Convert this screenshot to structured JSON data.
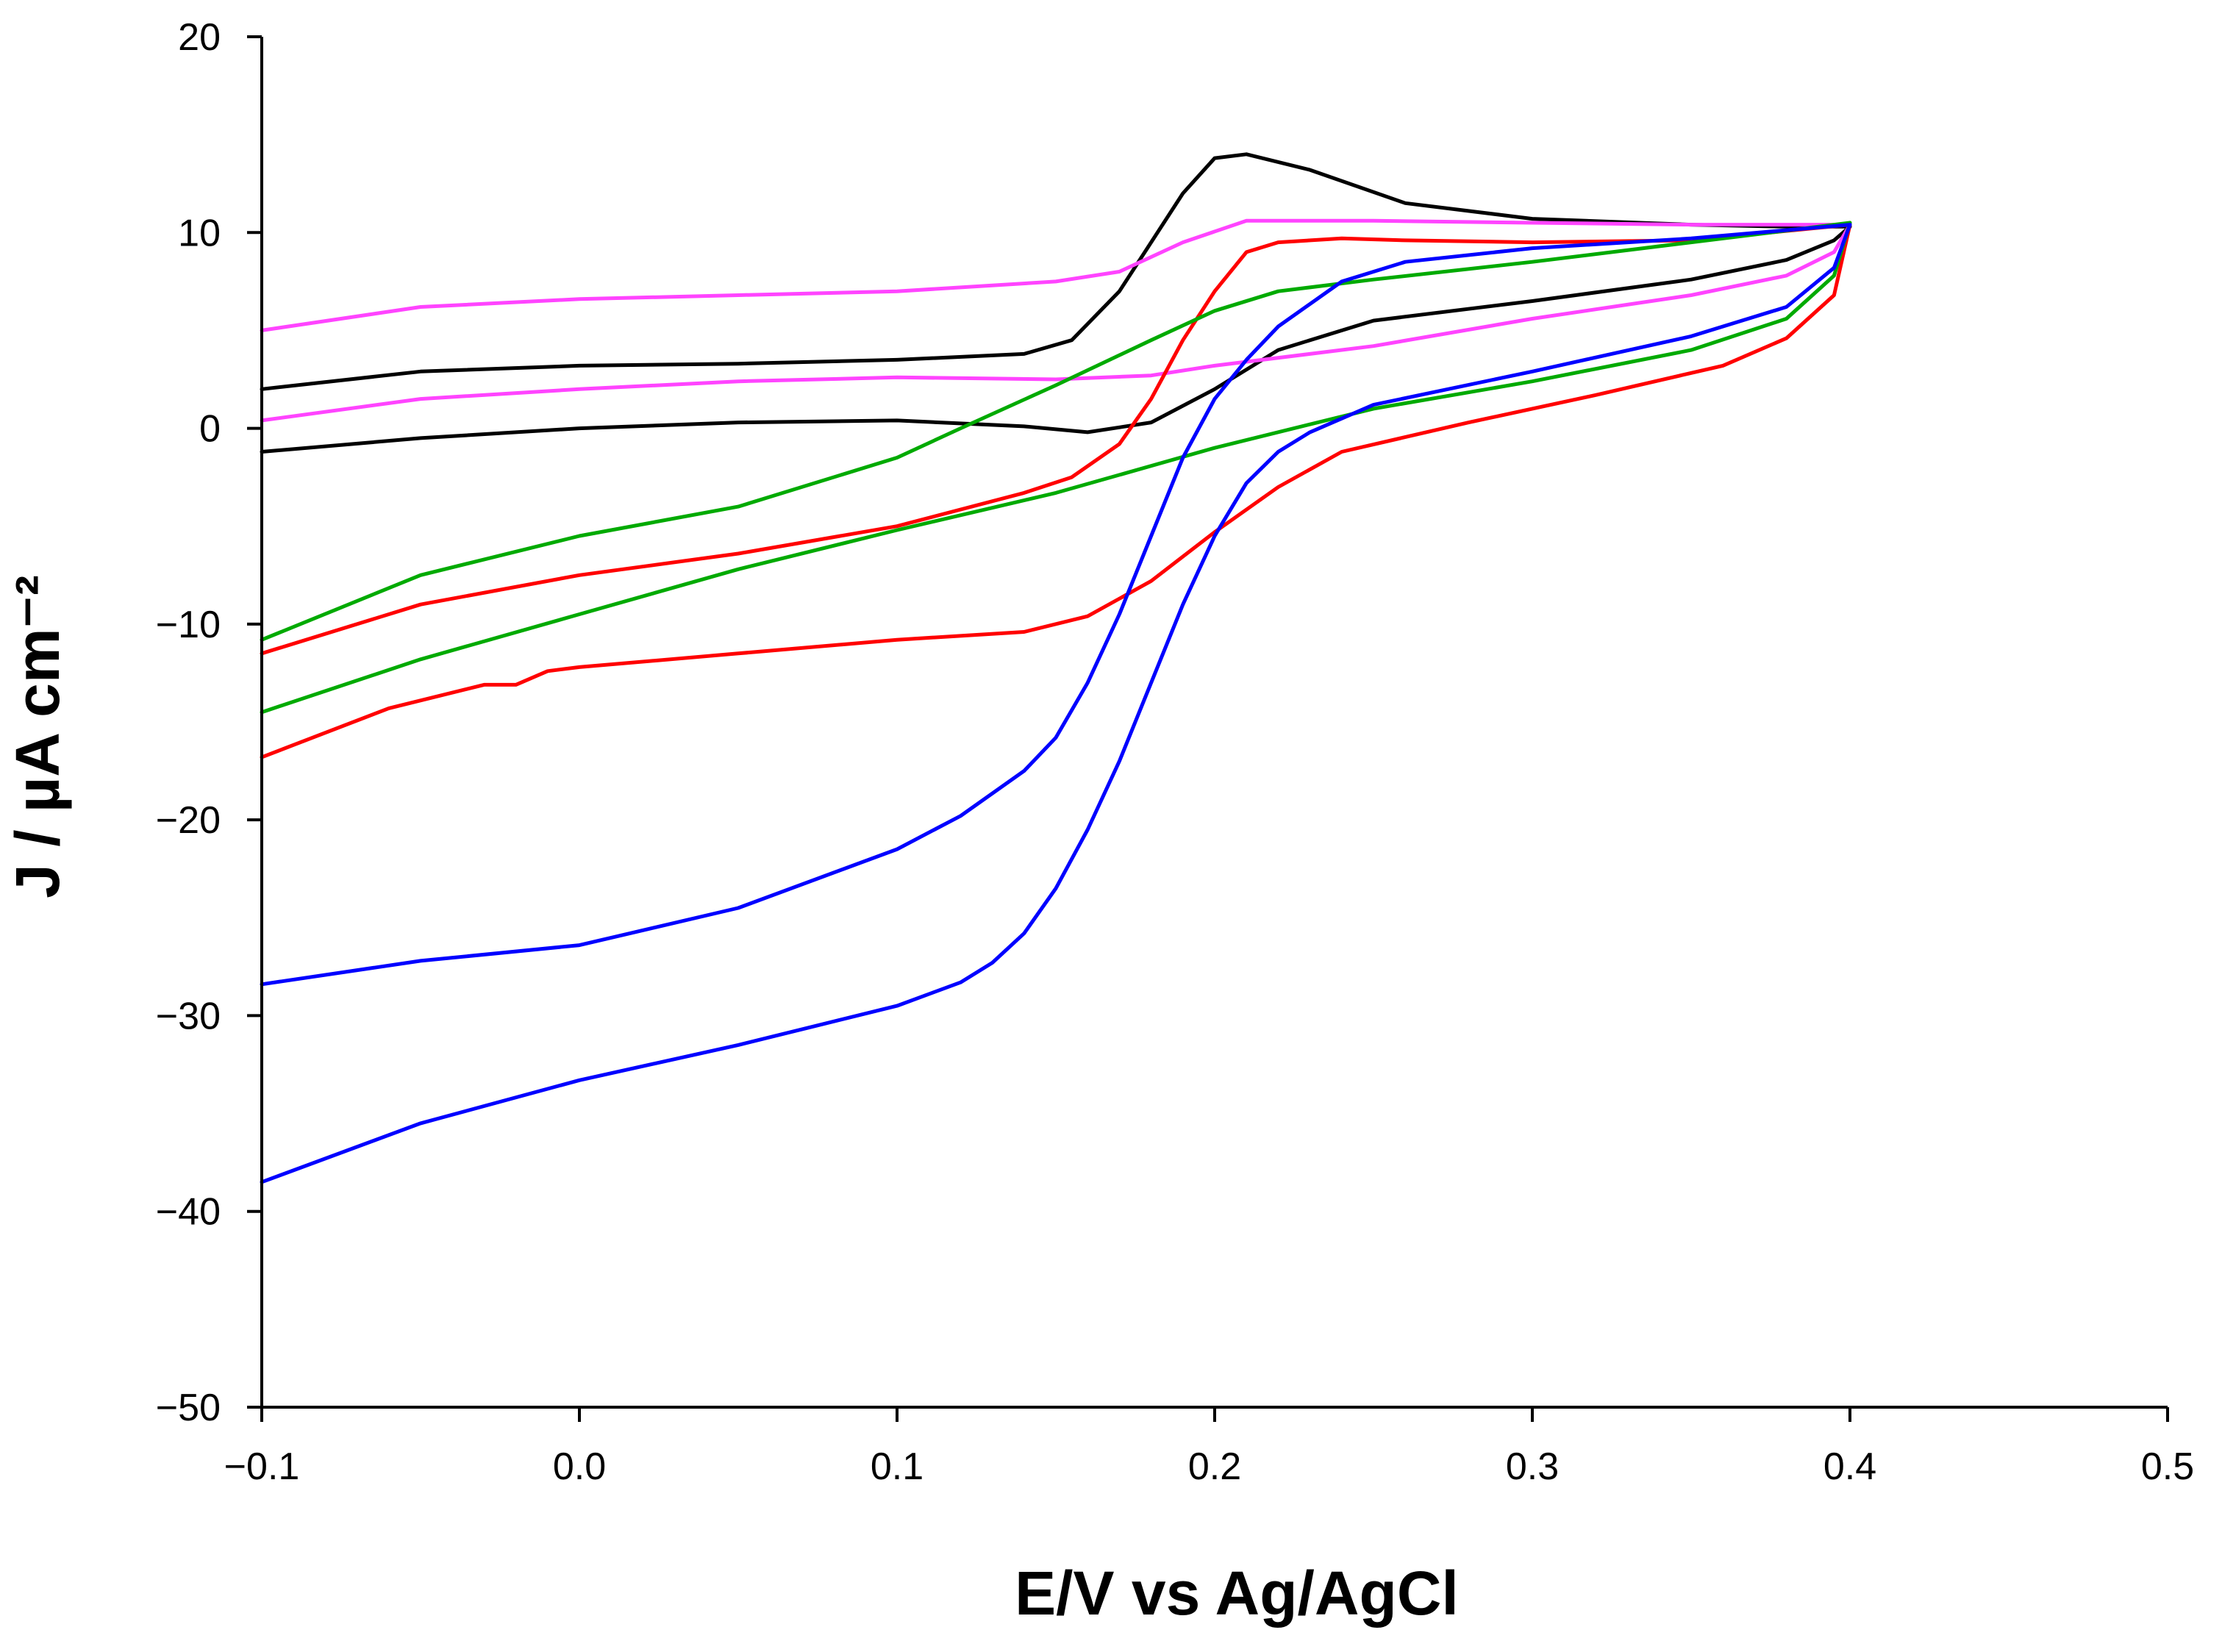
{
  "chart_data": {
    "type": "line",
    "title": "",
    "xlabel": "E/V vs Ag/AgCl",
    "ylabel": "J / µA cm⁻²",
    "xlim": [
      -0.1,
      0.5
    ],
    "ylim": [
      -50,
      20
    ],
    "x_ticks": [
      -0.1,
      0.0,
      0.1,
      0.2,
      0.3,
      0.4,
      0.5
    ],
    "x_tick_labels": [
      "−0.1",
      "0.0",
      "0.1",
      "0.2",
      "0.3",
      "0.4",
      "0.5"
    ],
    "y_ticks": [
      20,
      10,
      0,
      -10,
      -20,
      -30,
      -40,
      -50
    ],
    "y_tick_labels": [
      "20",
      "10",
      "0",
      "−10",
      "−20",
      "−30",
      "−40",
      "−50"
    ],
    "grid": false,
    "legend": "none",
    "series": [
      {
        "name": "black",
        "color": "#000000",
        "forward": [
          [
            -0.1,
            -1.2
          ],
          [
            -0.05,
            -0.5
          ],
          [
            0.0,
            0.0
          ],
          [
            0.05,
            0.3
          ],
          [
            0.1,
            0.4
          ],
          [
            0.14,
            0.1
          ],
          [
            0.16,
            -0.2
          ],
          [
            0.18,
            0.3
          ],
          [
            0.2,
            2.0
          ],
          [
            0.22,
            4.0
          ],
          [
            0.25,
            5.5
          ],
          [
            0.3,
            6.5
          ],
          [
            0.35,
            7.6
          ],
          [
            0.38,
            8.6
          ],
          [
            0.395,
            9.6
          ],
          [
            0.4,
            10.3
          ]
        ],
        "reverse": [
          [
            0.4,
            10.3
          ],
          [
            0.38,
            10.3
          ],
          [
            0.35,
            10.4
          ],
          [
            0.3,
            10.7
          ],
          [
            0.26,
            11.5
          ],
          [
            0.23,
            13.2
          ],
          [
            0.21,
            14.0
          ],
          [
            0.2,
            13.8
          ],
          [
            0.19,
            12.0
          ],
          [
            0.17,
            7.0
          ],
          [
            0.155,
            4.5
          ],
          [
            0.14,
            3.8
          ],
          [
            0.1,
            3.5
          ],
          [
            0.05,
            3.3
          ],
          [
            0.0,
            3.2
          ],
          [
            -0.05,
            2.9
          ],
          [
            -0.1,
            2.0
          ]
        ]
      },
      {
        "name": "magenta",
        "color": "#ff44ff",
        "forward": [
          [
            -0.1,
            0.4
          ],
          [
            -0.05,
            1.5
          ],
          [
            0.0,
            2.0
          ],
          [
            0.05,
            2.4
          ],
          [
            0.1,
            2.6
          ],
          [
            0.15,
            2.5
          ],
          [
            0.18,
            2.7
          ],
          [
            0.2,
            3.2
          ],
          [
            0.25,
            4.2
          ],
          [
            0.3,
            5.6
          ],
          [
            0.35,
            6.8
          ],
          [
            0.38,
            7.8
          ],
          [
            0.395,
            9.0
          ],
          [
            0.4,
            10.4
          ]
        ],
        "reverse": [
          [
            0.4,
            10.4
          ],
          [
            0.35,
            10.4
          ],
          [
            0.3,
            10.5
          ],
          [
            0.25,
            10.6
          ],
          [
            0.21,
            10.6
          ],
          [
            0.19,
            9.5
          ],
          [
            0.17,
            8.0
          ],
          [
            0.15,
            7.5
          ],
          [
            0.1,
            7.0
          ],
          [
            0.05,
            6.8
          ],
          [
            0.0,
            6.6
          ],
          [
            -0.05,
            6.2
          ],
          [
            -0.1,
            5.0
          ]
        ]
      },
      {
        "name": "red",
        "color": "#ff0000",
        "forward": [
          [
            -0.1,
            -16.8
          ],
          [
            -0.06,
            -14.3
          ],
          [
            -0.03,
            -13.1
          ],
          [
            -0.02,
            -13.1
          ],
          [
            -0.01,
            -12.4
          ],
          [
            0.0,
            -12.2
          ],
          [
            0.05,
            -11.5
          ],
          [
            0.1,
            -10.8
          ],
          [
            0.14,
            -10.4
          ],
          [
            0.16,
            -9.6
          ],
          [
            0.18,
            -7.8
          ],
          [
            0.2,
            -5.3
          ],
          [
            0.22,
            -3.0
          ],
          [
            0.24,
            -1.2
          ],
          [
            0.28,
            0.3
          ],
          [
            0.32,
            1.7
          ],
          [
            0.36,
            3.2
          ],
          [
            0.38,
            4.6
          ],
          [
            0.395,
            6.8
          ],
          [
            0.4,
            10.4
          ]
        ],
        "reverse": [
          [
            0.4,
            10.4
          ],
          [
            0.35,
            9.6
          ],
          [
            0.3,
            9.5
          ],
          [
            0.26,
            9.6
          ],
          [
            0.24,
            9.7
          ],
          [
            0.22,
            9.5
          ],
          [
            0.21,
            9.0
          ],
          [
            0.2,
            7.0
          ],
          [
            0.19,
            4.5
          ],
          [
            0.18,
            1.5
          ],
          [
            0.17,
            -0.8
          ],
          [
            0.155,
            -2.5
          ],
          [
            0.14,
            -3.3
          ],
          [
            0.1,
            -5.0
          ],
          [
            0.05,
            -6.4
          ],
          [
            0.0,
            -7.5
          ],
          [
            -0.05,
            -9.0
          ],
          [
            -0.1,
            -11.5
          ]
        ]
      },
      {
        "name": "green",
        "color": "#00aa00",
        "forward": [
          [
            -0.1,
            -14.5
          ],
          [
            -0.05,
            -11.8
          ],
          [
            0.0,
            -9.5
          ],
          [
            0.05,
            -7.2
          ],
          [
            0.1,
            -5.2
          ],
          [
            0.15,
            -3.3
          ],
          [
            0.2,
            -1.0
          ],
          [
            0.25,
            1.0
          ],
          [
            0.3,
            2.4
          ],
          [
            0.35,
            4.0
          ],
          [
            0.38,
            5.6
          ],
          [
            0.395,
            7.8
          ],
          [
            0.4,
            10.5
          ]
        ],
        "reverse": [
          [
            0.4,
            10.5
          ],
          [
            0.35,
            9.5
          ],
          [
            0.3,
            8.5
          ],
          [
            0.25,
            7.6
          ],
          [
            0.22,
            7.0
          ],
          [
            0.2,
            6.0
          ],
          [
            0.18,
            4.5
          ],
          [
            0.15,
            2.2
          ],
          [
            0.12,
            0.0
          ],
          [
            0.1,
            -1.5
          ],
          [
            0.05,
            -4.0
          ],
          [
            0.0,
            -5.5
          ],
          [
            -0.05,
            -7.5
          ],
          [
            -0.1,
            -10.8
          ]
        ]
      },
      {
        "name": "blue",
        "color": "#0000ff",
        "forward": [
          [
            -0.1,
            -38.5
          ],
          [
            -0.05,
            -35.5
          ],
          [
            0.0,
            -33.3
          ],
          [
            0.05,
            -31.5
          ],
          [
            0.1,
            -29.5
          ],
          [
            0.12,
            -28.3
          ],
          [
            0.13,
            -27.3
          ],
          [
            0.14,
            -25.8
          ],
          [
            0.15,
            -23.5
          ],
          [
            0.16,
            -20.5
          ],
          [
            0.17,
            -17.0
          ],
          [
            0.18,
            -13.0
          ],
          [
            0.19,
            -9.0
          ],
          [
            0.2,
            -5.5
          ],
          [
            0.21,
            -2.8
          ],
          [
            0.22,
            -1.2
          ],
          [
            0.23,
            -0.2
          ],
          [
            0.25,
            1.2
          ],
          [
            0.3,
            2.9
          ],
          [
            0.35,
            4.7
          ],
          [
            0.38,
            6.2
          ],
          [
            0.395,
            8.2
          ],
          [
            0.4,
            10.4
          ]
        ],
        "reverse": [
          [
            0.4,
            10.4
          ],
          [
            0.35,
            9.7
          ],
          [
            0.3,
            9.2
          ],
          [
            0.26,
            8.5
          ],
          [
            0.24,
            7.5
          ],
          [
            0.22,
            5.2
          ],
          [
            0.21,
            3.5
          ],
          [
            0.2,
            1.5
          ],
          [
            0.19,
            -1.5
          ],
          [
            0.18,
            -5.5
          ],
          [
            0.17,
            -9.5
          ],
          [
            0.16,
            -13.0
          ],
          [
            0.15,
            -15.8
          ],
          [
            0.14,
            -17.5
          ],
          [
            0.12,
            -19.8
          ],
          [
            0.1,
            -21.5
          ],
          [
            0.05,
            -24.5
          ],
          [
            0.0,
            -26.4
          ],
          [
            -0.05,
            -27.2
          ],
          [
            -0.1,
            -28.4
          ]
        ]
      }
    ]
  }
}
